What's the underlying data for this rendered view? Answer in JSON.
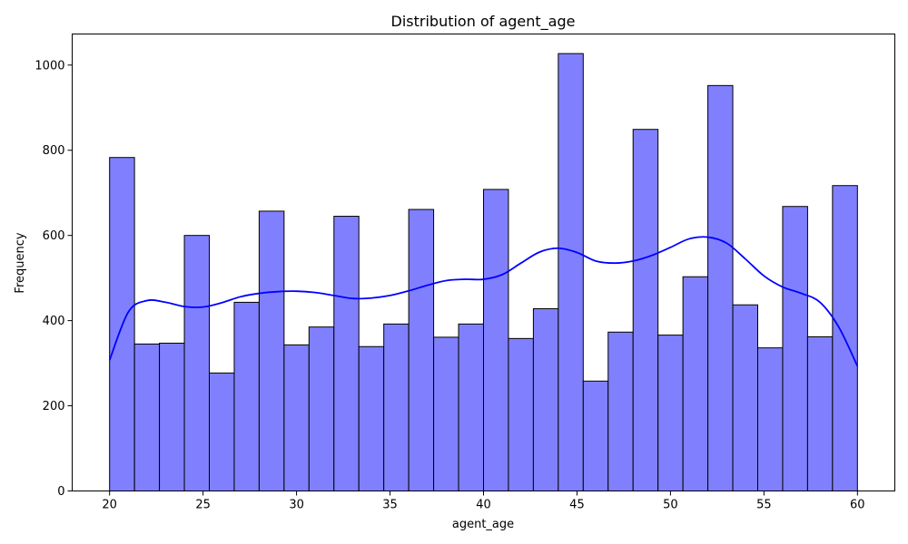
{
  "chart_data": {
    "type": "bar",
    "subtype": "histogram with kde line",
    "title": "Distribution of agent_age",
    "xlabel": "agent_age",
    "ylabel": "Frequency",
    "xlim": [
      18,
      62
    ],
    "ylim": [
      0,
      1073
    ],
    "xticks": [
      20,
      25,
      30,
      35,
      40,
      45,
      50,
      55,
      60
    ],
    "yticks": [
      0,
      200,
      400,
      600,
      800,
      1000
    ],
    "grid": false,
    "bin_start": 20,
    "bin_end": 60,
    "bin_count": 30,
    "bar_color": "#8080ff",
    "bar_edge_color": "#000000",
    "series": [
      {
        "type": "bar",
        "values": [
          783,
          345,
          347,
          600,
          277,
          443,
          657,
          343,
          385,
          645,
          339,
          392,
          661,
          361,
          392,
          708,
          358,
          428,
          1027,
          258,
          373,
          849,
          366,
          503,
          952,
          437,
          336,
          668,
          362,
          717
        ]
      },
      {
        "type": "line",
        "color": "#0000ff",
        "x": [
          20,
          21,
          22,
          23,
          24,
          25,
          26,
          27,
          28,
          29,
          30,
          31,
          32,
          33,
          34,
          35,
          36,
          37,
          38,
          39,
          40,
          41,
          42,
          43,
          44,
          45,
          46,
          47,
          48,
          49,
          50,
          51,
          52,
          53,
          54,
          55,
          56,
          57,
          58,
          59,
          60
        ],
        "y": [
          307,
          420,
          447,
          443,
          433,
          432,
          442,
          456,
          464,
          468,
          469,
          466,
          459,
          452,
          453,
          459,
          470,
          483,
          494,
          497,
          497,
          508,
          535,
          561,
          570,
          560,
          540,
          535,
          540,
          553,
          572,
          592,
          596,
          582,
          545,
          505,
          479,
          464,
          443,
          385,
          293
        ]
      }
    ]
  }
}
